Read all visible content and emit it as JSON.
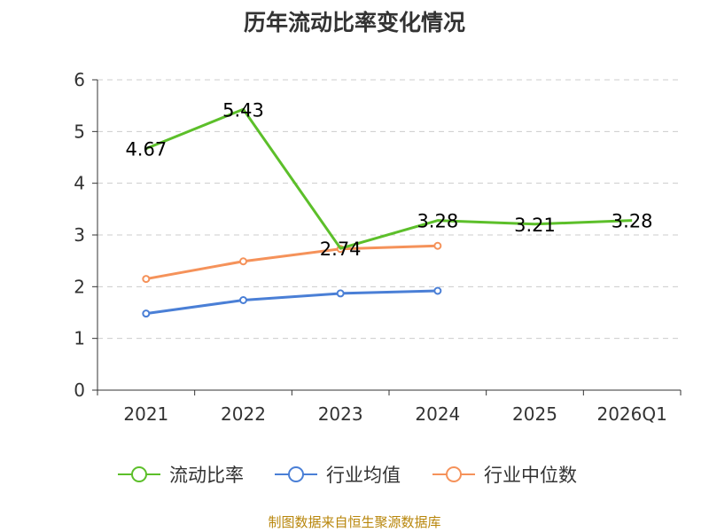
{
  "title": "历年流动比率变化情况",
  "source": "制图数据来自恒生聚源数据库",
  "colors": {
    "current_ratio": "#5cbf2a",
    "industry_avg": "#4a7fd6",
    "industry_median": "#f5925a",
    "grid": "#cccccc",
    "axis": "#333333"
  },
  "chart_data": {
    "type": "line",
    "title": "历年流动比率变化情况",
    "categories": [
      "2021",
      "2022",
      "2023",
      "2024",
      "2025",
      "2026Q1"
    ],
    "ylim": [
      0,
      6
    ],
    "yticks": [
      0,
      1,
      2,
      3,
      4,
      5,
      6
    ],
    "grid": true,
    "legend_position": "bottom",
    "series": [
      {
        "name": "流动比率",
        "color_key": "current_ratio",
        "values": [
          4.67,
          5.43,
          2.74,
          3.28,
          3.21,
          3.28
        ],
        "labels": true,
        "markers": false
      },
      {
        "name": "行业均值",
        "color_key": "industry_avg",
        "values": [
          1.48,
          1.74,
          1.87,
          1.92,
          null,
          null
        ],
        "labels": false,
        "markers": true
      },
      {
        "name": "行业中位数",
        "color_key": "industry_median",
        "values": [
          2.15,
          2.49,
          2.73,
          2.79,
          null,
          null
        ],
        "labels": false,
        "markers": true
      }
    ]
  }
}
